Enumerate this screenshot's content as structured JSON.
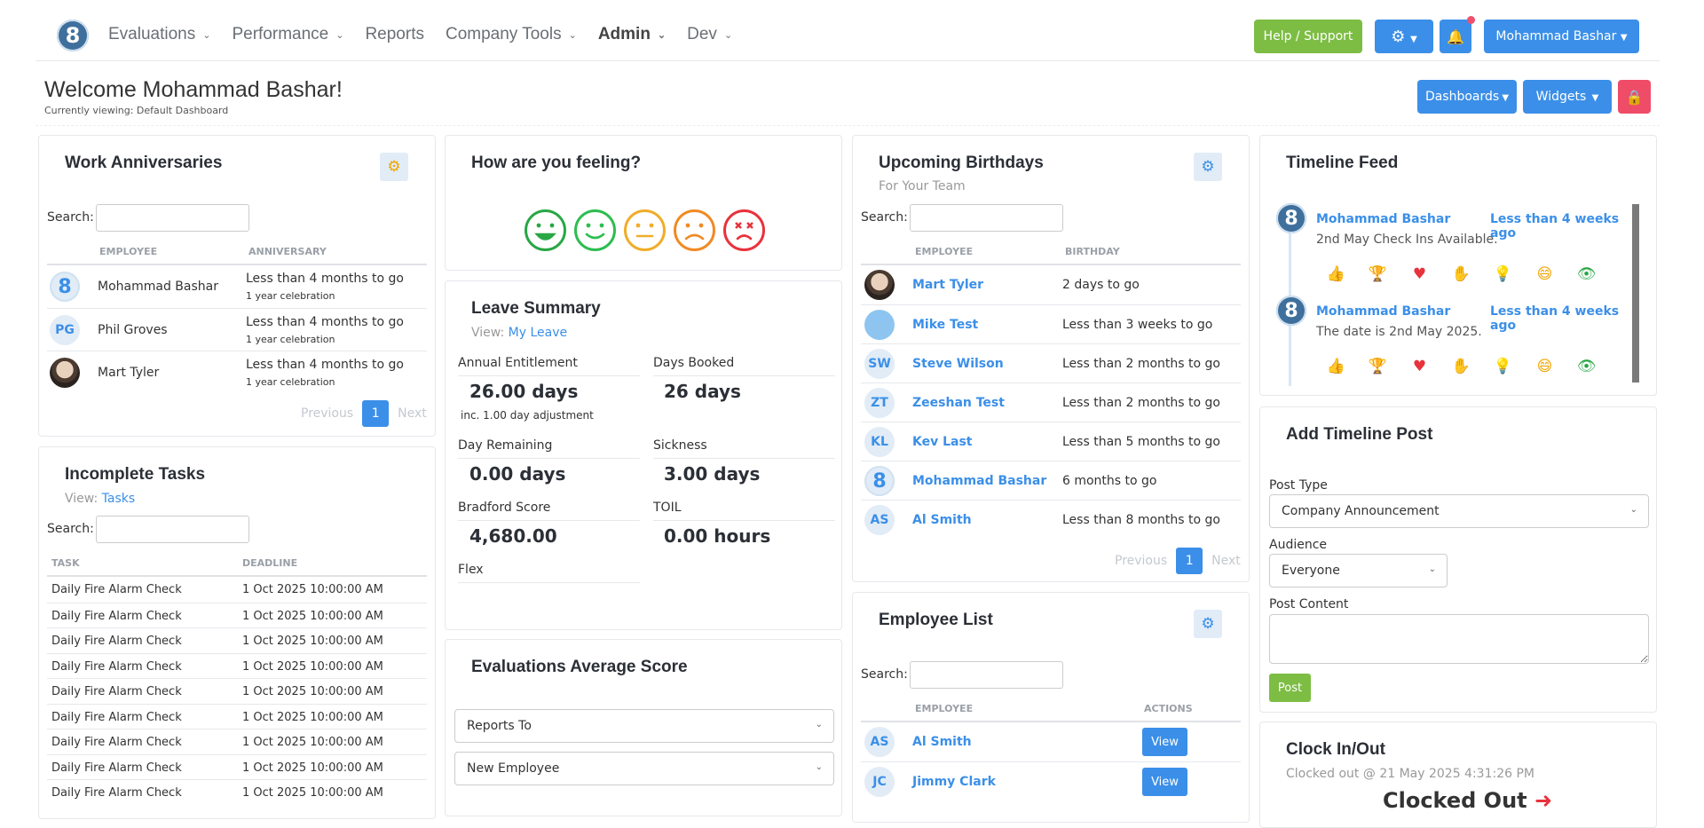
{
  "nav": {
    "logo": "8",
    "items": [
      {
        "label": "Evaluations",
        "dropdown": true,
        "bold": false
      },
      {
        "label": "Performance",
        "dropdown": true,
        "bold": false
      },
      {
        "label": "Reports",
        "dropdown": false,
        "bold": false
      },
      {
        "label": "Company Tools",
        "dropdown": true,
        "bold": false
      },
      {
        "label": "Admin",
        "dropdown": true,
        "bold": true
      },
      {
        "label": "Dev",
        "dropdown": true,
        "bold": false
      }
    ],
    "help_label": "Help / Support",
    "user_label": "Mohammad Bashar"
  },
  "header": {
    "welcome": "Welcome Mohammad Bashar!",
    "viewing": "Currently viewing: Default Dashboard",
    "dashboards_label": "Dashboards",
    "widgets_label": "Widgets"
  },
  "work_anniversaries": {
    "title": "Work Anniversaries",
    "search_label": "Search:",
    "col_employee": "EMPLOYEE",
    "col_anniversary": "ANNIVERSARY",
    "rows": [
      {
        "initials": "8",
        "type": "logo",
        "name": "Mohammad Bashar",
        "anniversary": "Less than 4 months to go",
        "celebration": "1 year celebration"
      },
      {
        "initials": "PG",
        "type": "initials",
        "name": "Phil Groves",
        "anniversary": "Less than 4 months to go",
        "celebration": "1 year celebration"
      },
      {
        "initials": "",
        "type": "photo",
        "name": "Mart Tyler",
        "anniversary": "Less than 4 months to go",
        "celebration": "1 year celebration"
      }
    ],
    "prev": "Previous",
    "page": "1",
    "next": "Next"
  },
  "incomplete_tasks": {
    "title": "Incomplete Tasks",
    "view_prefix": "View:",
    "view_link": "Tasks",
    "search_label": "Search:",
    "col_task": "TASK",
    "col_deadline": "DEADLINE",
    "rows": [
      {
        "task": "Daily Fire Alarm Check",
        "deadline": "1 Oct 2025 10:00:00 AM"
      },
      {
        "task": "Daily Fire Alarm Check",
        "deadline": "1 Oct 2025 10:00:00 AM"
      },
      {
        "task": "Daily Fire Alarm Check",
        "deadline": "1 Oct 2025 10:00:00 AM"
      },
      {
        "task": "Daily Fire Alarm Check",
        "deadline": "1 Oct 2025 10:00:00 AM"
      },
      {
        "task": "Daily Fire Alarm Check",
        "deadline": "1 Oct 2025 10:00:00 AM"
      },
      {
        "task": "Daily Fire Alarm Check",
        "deadline": "1 Oct 2025 10:00:00 AM"
      },
      {
        "task": "Daily Fire Alarm Check",
        "deadline": "1 Oct 2025 10:00:00 AM"
      },
      {
        "task": "Daily Fire Alarm Check",
        "deadline": "1 Oct 2025 10:00:00 AM"
      },
      {
        "task": "Daily Fire Alarm Check",
        "deadline": "1 Oct 2025 10:00:00 AM"
      }
    ]
  },
  "feeling": {
    "title": "How are you feeling?",
    "faces": [
      {
        "name": "very-happy",
        "color": "#28a745"
      },
      {
        "name": "happy",
        "color": "#2dbd50"
      },
      {
        "name": "neutral",
        "color": "#f0ad2a"
      },
      {
        "name": "sad",
        "color": "#f08a24"
      },
      {
        "name": "very-sad",
        "color": "#e8323c"
      }
    ]
  },
  "leave_summary": {
    "title": "Leave Summary",
    "view_prefix": "View:",
    "view_link": "My Leave",
    "annual_label": "Annual Entitlement",
    "annual_value": "26.00 days",
    "annual_note": "inc. 1.00 day adjustment",
    "booked_label": "Days Booked",
    "booked_value": "26 days",
    "remaining_label": "Day Remaining",
    "remaining_value": "0.00 days",
    "sickness_label": "Sickness",
    "sickness_value": "3.00 days",
    "bradford_label": "Bradford Score",
    "bradford_value": "4,680.00",
    "toil_label": "TOIL",
    "toil_value": "0.00 hours",
    "flex_label": "Flex"
  },
  "evaluations": {
    "title": "Evaluations Average Score",
    "select1": "Reports To",
    "select2": "New Employee"
  },
  "birthdays": {
    "title": "Upcoming Birthdays",
    "subtitle": "For Your Team",
    "search_label": "Search:",
    "col_employee": "EMPLOYEE",
    "col_birthday": "BIRTHDAY",
    "rows": [
      {
        "type": "photo",
        "initials": "",
        "name": "Mart Tyler",
        "birthday": "2 days to go"
      },
      {
        "type": "lblue",
        "initials": "",
        "name": "Mike Test",
        "birthday": "Less than 3 weeks to go"
      },
      {
        "type": "initials",
        "initials": "SW",
        "name": "Steve Wilson",
        "birthday": "Less than 2 months to go"
      },
      {
        "type": "initials",
        "initials": "ZT",
        "name": "Zeeshan Test",
        "birthday": "Less than 2 months to go"
      },
      {
        "type": "initials",
        "initials": "KL",
        "name": "Kev Last",
        "birthday": "Less than 5 months to go"
      },
      {
        "type": "logo",
        "initials": "8",
        "name": "Mohammad Bashar",
        "birthday": "6 months to go"
      },
      {
        "type": "initials",
        "initials": "AS",
        "name": "Al Smith",
        "birthday": "Less than 8 months to go"
      }
    ],
    "prev": "Previous",
    "page": "1",
    "next": "Next"
  },
  "employee_list": {
    "title": "Employee List",
    "search_label": "Search:",
    "col_employee": "EMPLOYEE",
    "col_actions": "ACTIONS",
    "rows": [
      {
        "initials": "AS",
        "name": "Al Smith",
        "action": "View"
      },
      {
        "initials": "JC",
        "name": "Jimmy Clark",
        "action": "View"
      }
    ]
  },
  "timeline": {
    "title": "Timeline Feed",
    "items": [
      {
        "name": "Mohammad Bashar",
        "time": "Less than 4 weeks ago",
        "text": "2nd May Check Ins Available."
      },
      {
        "name": "Mohammad Bashar",
        "time": "Less than 4 weeks ago",
        "text": "The date is 2nd May 2025."
      }
    ],
    "reactions": [
      {
        "icon": "thumbs-up-icon",
        "glyph": "👍",
        "color": "#3b8fe8"
      },
      {
        "icon": "trophy-icon",
        "glyph": "🏆",
        "color": "#f0b400"
      },
      {
        "icon": "heart-icon",
        "glyph": "♥",
        "color": "#e8323c"
      },
      {
        "icon": "care-hand-icon",
        "glyph": "✋",
        "color": "#7a6ae0"
      },
      {
        "icon": "lightbulb-icon",
        "glyph": "💡",
        "color": "#28aaf0"
      },
      {
        "icon": "laugh-icon",
        "glyph": "😄",
        "color": "#f0a500"
      },
      {
        "icon": "eye-icon",
        "glyph": "👁",
        "color": "#28a745"
      }
    ]
  },
  "add_post": {
    "title": "Add Timeline Post",
    "type_label": "Post Type",
    "type_value": "Company Announcement",
    "audience_label": "Audience",
    "audience_value": "Everyone",
    "content_label": "Post Content",
    "post_button": "Post"
  },
  "clock": {
    "title": "Clock In/Out",
    "status_text": "Clocked out @ 21 May 2025 4:31:26 PM",
    "big_status": "Clocked Out"
  }
}
